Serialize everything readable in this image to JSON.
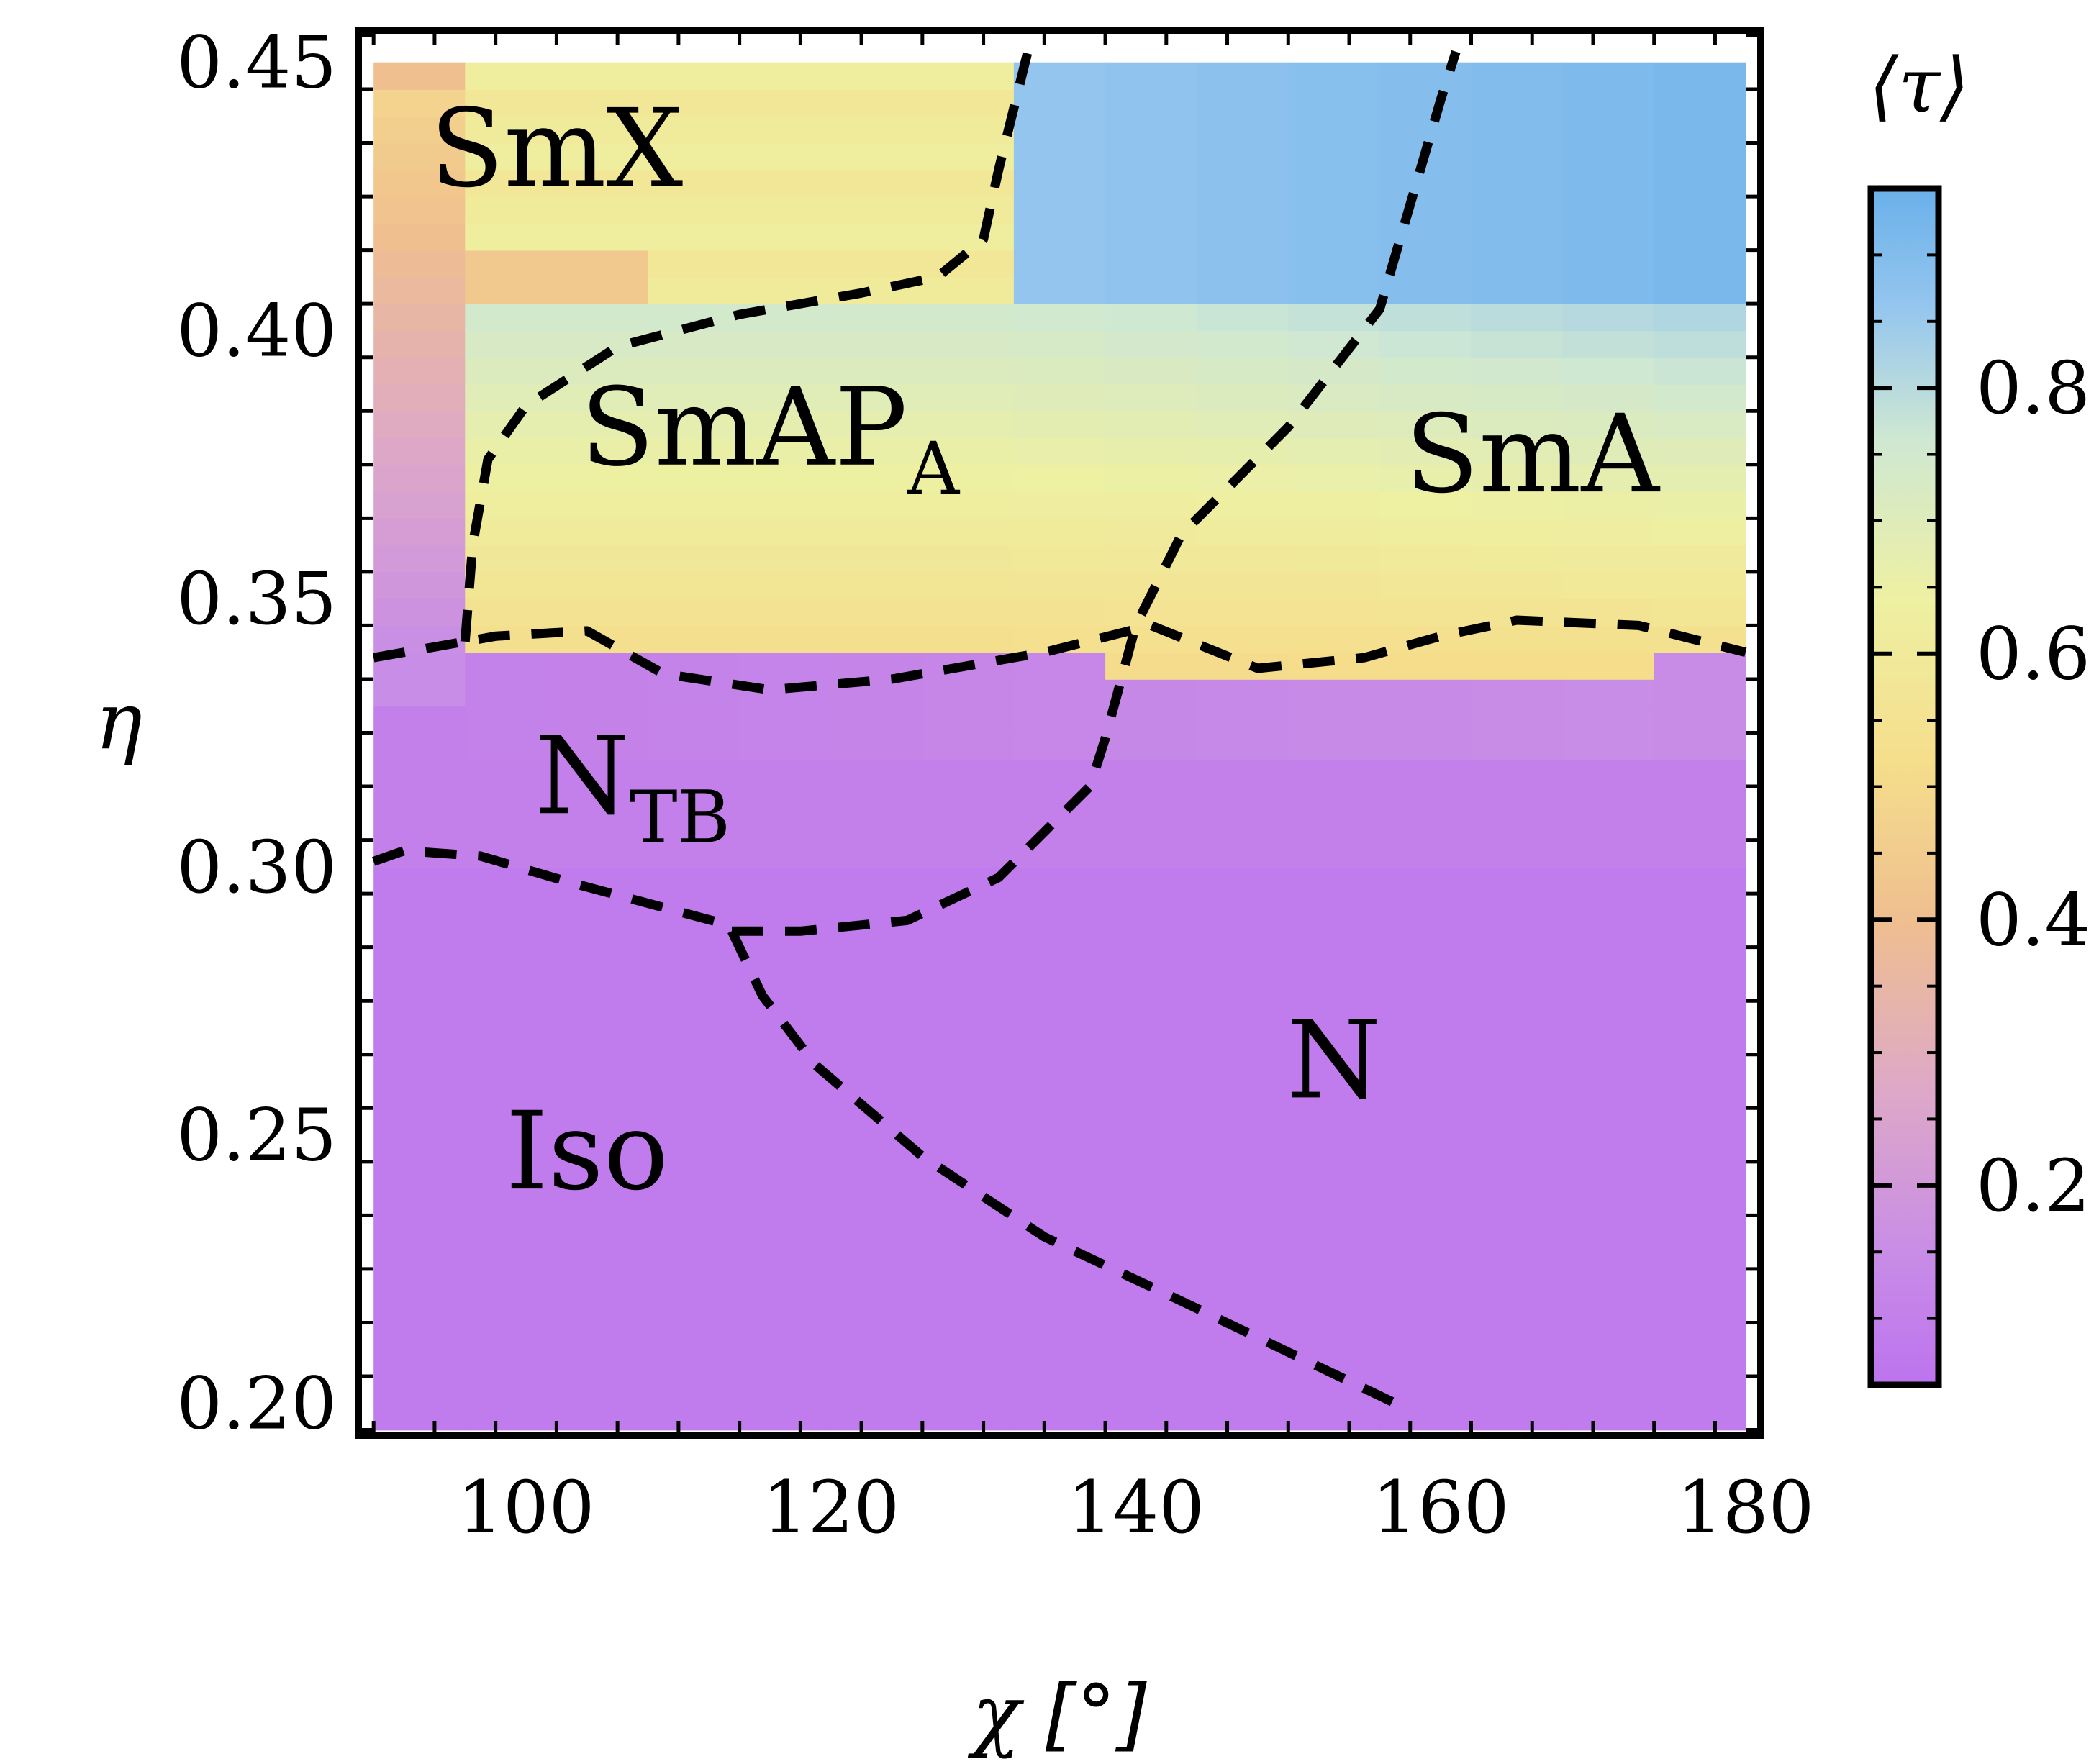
{
  "chart_data": {
    "type": "heatmap",
    "xlabel": "χ [°]",
    "ylabel": "η",
    "xlim": [
      89,
      181
    ],
    "ylim": [
      0.194,
      0.456
    ],
    "x_ticks": [
      100,
      120,
      140,
      160,
      180
    ],
    "x_tick_labels": [
      "100",
      "120",
      "140",
      "160",
      "180"
    ],
    "y_ticks": [
      0.2,
      0.25,
      0.3,
      0.35,
      0.4,
      0.45
    ],
    "y_tick_labels": [
      "0.20",
      "0.25",
      "0.30",
      "0.35",
      "0.40",
      "0.45"
    ],
    "grid": false,
    "colorbar": {
      "title": "⟨τ⟩",
      "range": [
        0.05,
        0.95
      ],
      "ticks": [
        0.2,
        0.4,
        0.6,
        0.8
      ],
      "tick_labels": [
        "0.2",
        "0.4",
        "0.6",
        "0.8"
      ],
      "colormap": [
        {
          "value": 0.05,
          "color": "#bd73ee"
        },
        {
          "value": 0.15,
          "color": "#c88de6"
        },
        {
          "value": 0.27,
          "color": "#dda8c8"
        },
        {
          "value": 0.4,
          "color": "#efbf8f"
        },
        {
          "value": 0.52,
          "color": "#f5de8c"
        },
        {
          "value": 0.64,
          "color": "#eef0a2"
        },
        {
          "value": 0.76,
          "color": "#cfe8d2"
        },
        {
          "value": 0.86,
          "color": "#95c6ee"
        },
        {
          "value": 0.95,
          "color": "#6ab0ea"
        }
      ]
    },
    "colormap_note": "cell value = mean order parameter ⟨τ⟩",
    "x_edges": [
      90,
      96,
      102,
      108,
      114,
      120,
      126,
      132,
      138,
      144,
      150,
      156,
      162,
      168,
      174,
      180
    ],
    "y_edges": [
      0.195,
      0.2,
      0.205,
      0.21,
      0.215,
      0.22,
      0.225,
      0.23,
      0.235,
      0.24,
      0.245,
      0.25,
      0.255,
      0.26,
      0.265,
      0.27,
      0.275,
      0.28,
      0.285,
      0.29,
      0.295,
      0.3,
      0.305,
      0.31,
      0.315,
      0.32,
      0.325,
      0.33,
      0.335,
      0.34,
      0.345,
      0.35,
      0.355,
      0.36,
      0.365,
      0.37,
      0.375,
      0.38,
      0.385,
      0.39,
      0.395,
      0.4,
      0.405,
      0.41,
      0.415,
      0.42,
      0.425,
      0.43,
      0.435,
      0.44,
      0.445,
      0.45
    ],
    "regions": [
      {
        "name": "SmX",
        "x": 102,
        "y": 0.427
      },
      {
        "name": "SmAP",
        "sub": "A",
        "x": 116,
        "y": 0.375
      },
      {
        "name": "SmA",
        "x": 166,
        "y": 0.37
      },
      {
        "name": "N",
        "sub": "TB",
        "x": 107,
        "y": 0.31
      },
      {
        "name": "N",
        "x": 153,
        "y": 0.257
      },
      {
        "name": "Iso",
        "x": 104,
        "y": 0.24
      }
    ],
    "boundaries": [
      {
        "name": "Iso-N",
        "points": [
          [
            113.5,
            0.288
          ],
          [
            115.5,
            0.276
          ],
          [
            119,
            0.263
          ],
          [
            126,
            0.246
          ],
          [
            134,
            0.231
          ],
          [
            143,
            0.219
          ],
          [
            157,
            0.2
          ]
        ]
      },
      {
        "name": "Iso-NTB",
        "points": [
          [
            90,
            0.301
          ],
          [
            92,
            0.303
          ],
          [
            97,
            0.302
          ],
          [
            103,
            0.297
          ],
          [
            113.5,
            0.289
          ]
        ]
      },
      {
        "name": "NTB-N",
        "points": [
          [
            113.5,
            0.288
          ],
          [
            118,
            0.288
          ],
          [
            125,
            0.29
          ],
          [
            131,
            0.298
          ],
          [
            137,
            0.315
          ],
          [
            138,
            0.324
          ],
          [
            140,
            0.345
          ],
          [
            143,
            0.362
          ],
          [
            150,
            0.382
          ],
          [
            156,
            0.404
          ],
          [
            160,
            0.443
          ],
          [
            161,
            0.452
          ]
        ]
      },
      {
        "name": "NTB-Sm",
        "points": [
          [
            90,
            0.339
          ],
          [
            98,
            0.343
          ],
          [
            104,
            0.344
          ],
          [
            109,
            0.336
          ],
          [
            116,
            0.333
          ],
          [
            124,
            0.335
          ],
          [
            134,
            0.34
          ],
          [
            141,
            0.345
          ],
          [
            148,
            0.337
          ],
          [
            155,
            0.339
          ],
          [
            160,
            0.343
          ],
          [
            165,
            0.346
          ],
          [
            173,
            0.345
          ],
          [
            180,
            0.34
          ]
        ]
      },
      {
        "name": "SmAPA-lower",
        "points": [
          [
            96,
            0.342
          ],
          [
            96.5,
            0.36
          ],
          [
            97.5,
            0.376
          ],
          [
            100,
            0.386
          ],
          [
            106,
            0.397
          ],
          [
            114,
            0.403
          ],
          [
            122,
            0.407
          ],
          [
            127,
            0.41
          ],
          [
            130,
            0.417
          ],
          [
            131,
            0.43
          ],
          [
            133,
            0.453
          ]
        ]
      }
    ]
  }
}
